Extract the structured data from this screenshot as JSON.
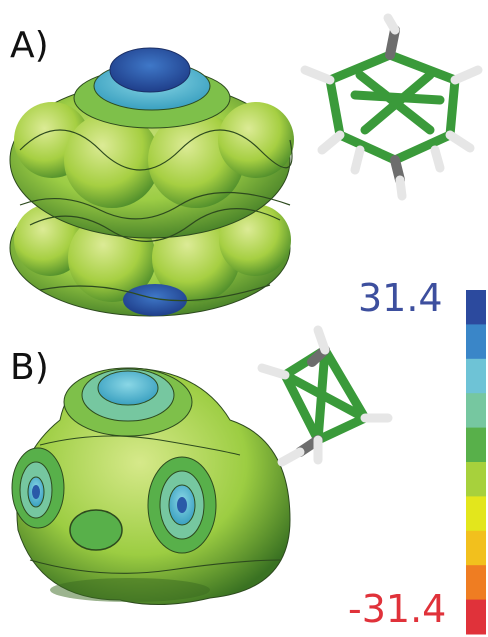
{
  "panels": {
    "a_label": "A)",
    "b_label": "B)"
  },
  "colorbar": {
    "max_label": "31.4",
    "min_label": "-31.4",
    "max_color": "#3d4f9e",
    "min_color": "#e0323a",
    "colors": [
      "#2c4a9e",
      "#3a86c8",
      "#6ec3d6",
      "#76c7a0",
      "#58b04a",
      "#a7d13c",
      "#e3e61c",
      "#f2c01d",
      "#ef7d22",
      "#e0323a"
    ]
  },
  "surface_colors": {
    "green": "#7ec04a",
    "yellow_green": "#b4d23c",
    "blue": "#2a5aa8",
    "cyan": "#60b8d0"
  },
  "molecule_colors": {
    "carbon": "#555555",
    "boron": "#3a9a3a",
    "hydrogen": "#e8e8e8"
  }
}
